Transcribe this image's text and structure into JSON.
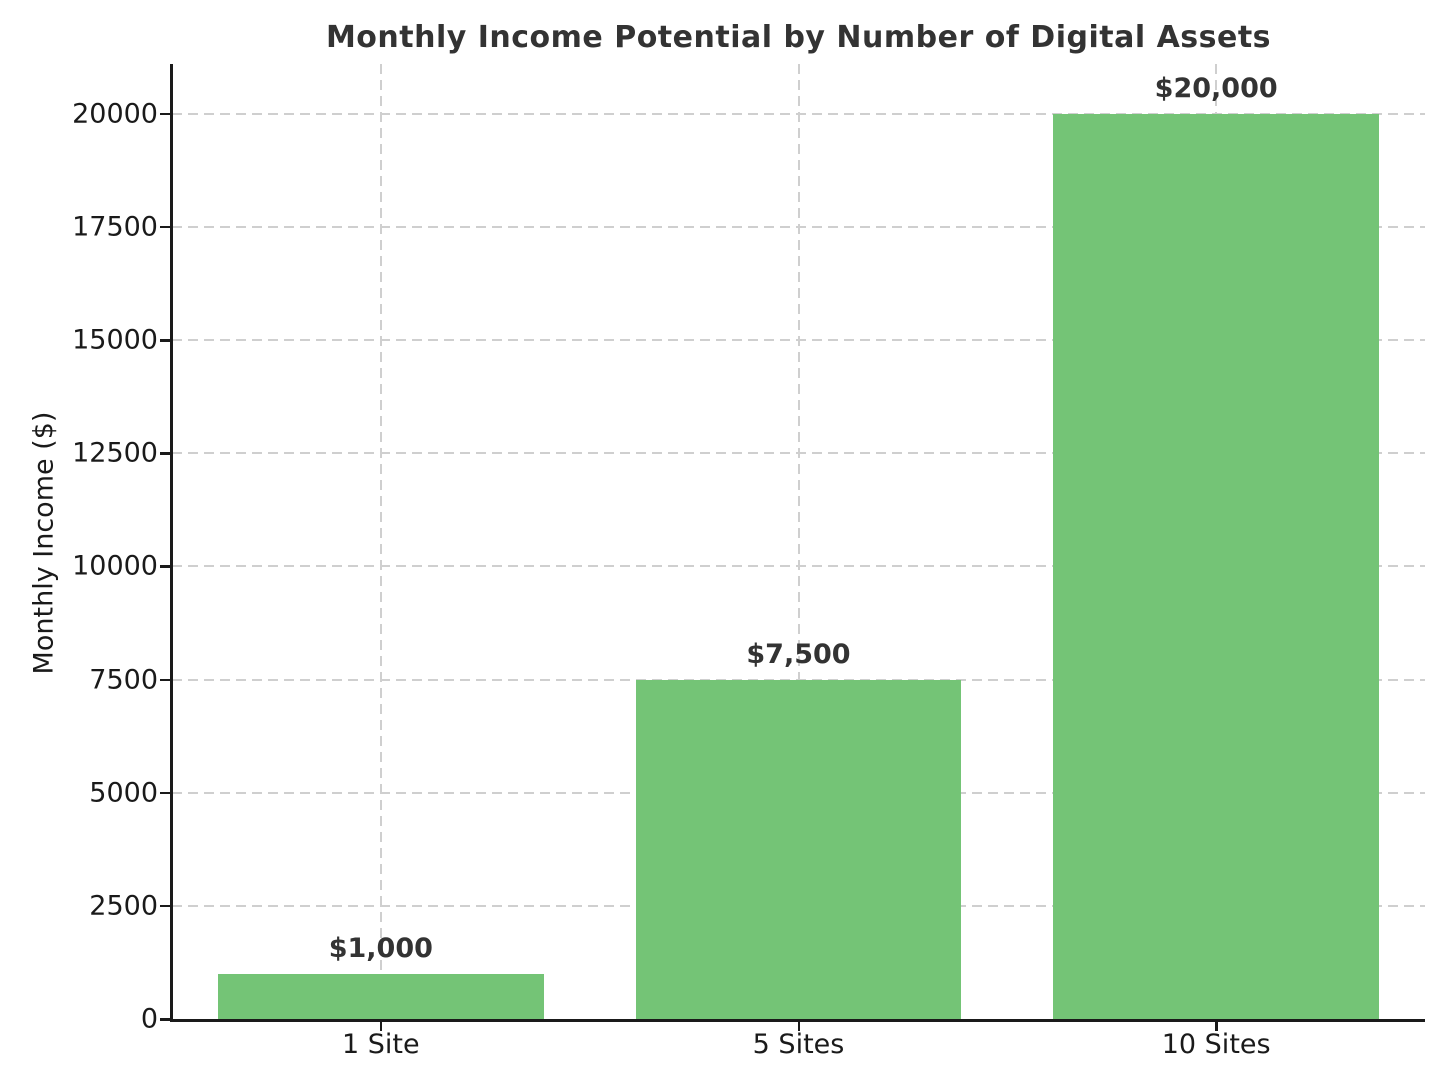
{
  "figure": {
    "background_color": "#ffffff"
  },
  "chart_data": {
    "type": "bar",
    "title": "Monthly Income Potential by Number of Digital Assets",
    "categories": [
      "1 Site",
      "5 Sites",
      "10 Sites"
    ],
    "values": [
      1000,
      7500,
      20000
    ],
    "bar_labels": [
      "$1,000",
      "$7,500",
      "$20,000"
    ],
    "xlabel": "",
    "ylabel": "Monthly Income ($)",
    "yticks": [
      0,
      2500,
      5000,
      7500,
      10000,
      12500,
      15000,
      17500,
      20000
    ],
    "ylim": [
      0,
      21100
    ],
    "grid": true,
    "grid_style": "dashed",
    "legend_position": "none",
    "colors": {
      "bar": "#74c476",
      "grid": "#cccccc",
      "axis": "#1a1a1a",
      "title_text": "#333333",
      "value_label_text": "#333333",
      "tick_label_text": "#1a1a1a"
    }
  }
}
